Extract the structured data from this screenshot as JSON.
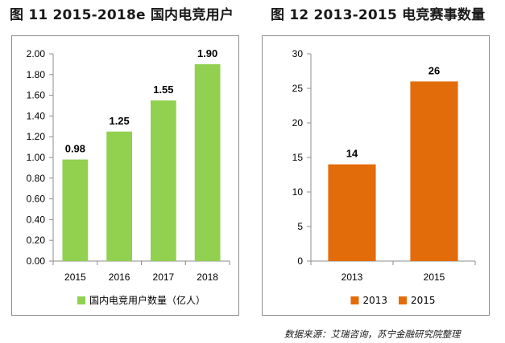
{
  "figures": {
    "left_title": "图 11  2015-2018e 国内电竞用户",
    "right_title": "图 12 2013-2015 电竞赛事数量"
  },
  "source_note": "数据来源：艾瑞咨询，苏宁金融研究院整理",
  "chart_data": [
    {
      "type": "bar",
      "title": "图 11  2015-2018e 国内电竞用户",
      "categories": [
        "2015",
        "2016",
        "2017",
        "2018"
      ],
      "series": [
        {
          "name": "国内电竞用户数量（亿人）",
          "values": [
            0.98,
            1.25,
            1.55,
            1.9
          ],
          "labels": [
            "0.98",
            "1.25",
            "1.55",
            "1.90"
          ],
          "color": "#92d050"
        }
      ],
      "ylim": [
        0,
        2.0
      ],
      "yticks": [
        "0.00",
        "0.20",
        "0.40",
        "0.60",
        "0.80",
        "1.00",
        "1.20",
        "1.40",
        "1.60",
        "1.80",
        "2.00"
      ],
      "grid": false,
      "legend": "bottom"
    },
    {
      "type": "bar",
      "title": "图 12 2013-2015 电竞赛事数量",
      "categories": [
        "2013",
        "2015"
      ],
      "series": [
        {
          "name": "2013",
          "values": [
            14,
            null
          ],
          "labels": [
            "14",
            ""
          ],
          "color": "#e36c0a"
        },
        {
          "name": "2015",
          "values": [
            null,
            26
          ],
          "labels": [
            "",
            "26"
          ],
          "color": "#e36c0a"
        }
      ],
      "ylim": [
        0,
        30
      ],
      "yticks": [
        "0",
        "5",
        "10",
        "15",
        "20",
        "25",
        "30"
      ],
      "grid": false,
      "legend": "bottom"
    }
  ]
}
